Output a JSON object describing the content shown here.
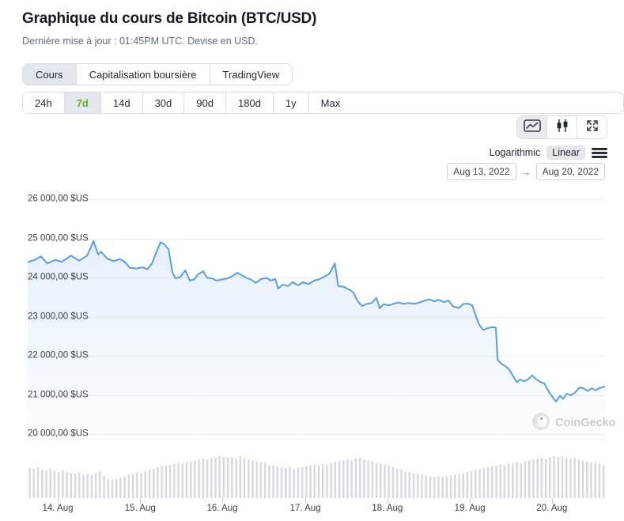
{
  "header": {
    "title": "Graphique du cours de Bitcoin (BTC/USD)",
    "subtitle": "Dernière mise à jour : 01:45PM UTC. Devise en USD.",
    "tabs": [
      {
        "label": "Cours",
        "active": true
      },
      {
        "label": "Capitalisation boursière",
        "active": false
      },
      {
        "label": "TradingView",
        "active": false
      }
    ],
    "ranges": [
      {
        "label": "24h",
        "active": false
      },
      {
        "label": "7d",
        "active": true
      },
      {
        "label": "14d",
        "active": false
      },
      {
        "label": "30d",
        "active": false
      },
      {
        "label": "90d",
        "active": false
      },
      {
        "label": "180d",
        "active": false
      },
      {
        "label": "1y",
        "active": false
      },
      {
        "label": "Max",
        "active": false
      }
    ]
  },
  "controls": {
    "chart_types": [
      "line-chart",
      "candlestick",
      "fullscreen"
    ],
    "chart_type_selected": "line-chart",
    "scale": {
      "options": [
        "Logarithmic",
        "Linear"
      ],
      "selected": "Linear"
    },
    "date_range": {
      "from": "Aug 13, 2022",
      "arrow": "→",
      "to": "Aug 20, 2022"
    }
  },
  "watermark": {
    "label": "CoinGecko"
  },
  "colors": {
    "line": "#5d9cdf",
    "area_top": "rgba(100,160,225,0.16)",
    "area_bottom": "rgba(100,160,225,0.02)",
    "volume_bar": "#d5d8e0",
    "active_green": "#6fad27",
    "grid": "#eceef1"
  },
  "chart_data": {
    "type": "line",
    "title": "Bitcoin price BTC/USD, 7 days (Aug 13 - Aug 20, 2022)",
    "xlabel": "",
    "ylabel": "",
    "currency": "USD",
    "grid": true,
    "legend": false,
    "ylim": [
      19879,
      26141
    ],
    "y_ticks": [
      {
        "value": 26000,
        "label": "26 000,00 $US"
      },
      {
        "value": 25000,
        "label": "25 000,00 $US"
      },
      {
        "value": 24000,
        "label": "24 000,00 $US"
      },
      {
        "value": 23000,
        "label": "23 000,00 $US"
      },
      {
        "value": 22000,
        "label": "22 000,00 $US"
      },
      {
        "value": 21000,
        "label": "21 000,00 $US"
      },
      {
        "value": 20000,
        "label": "20 000,00 $US"
      }
    ],
    "x_ticks": [
      {
        "f": 0.052,
        "label": "14. Aug"
      },
      {
        "f": 0.195,
        "label": "15. Aug"
      },
      {
        "f": 0.337,
        "label": "16. Aug"
      },
      {
        "f": 0.481,
        "label": "17. Aug"
      },
      {
        "f": 0.623,
        "label": "18. Aug"
      },
      {
        "f": 0.766,
        "label": "19. Aug"
      },
      {
        "f": 0.908,
        "label": "20. Aug"
      }
    ],
    "price_points": [
      [
        0.0,
        24390
      ],
      [
        0.012,
        24450
      ],
      [
        0.023,
        24540
      ],
      [
        0.034,
        24360
      ],
      [
        0.048,
        24450
      ],
      [
        0.059,
        24400
      ],
      [
        0.075,
        24560
      ],
      [
        0.089,
        24430
      ],
      [
        0.103,
        24560
      ],
      [
        0.114,
        24930
      ],
      [
        0.122,
        24590
      ],
      [
        0.127,
        24660
      ],
      [
        0.138,
        24480
      ],
      [
        0.149,
        24420
      ],
      [
        0.16,
        24470
      ],
      [
        0.168,
        24400
      ],
      [
        0.177,
        24250
      ],
      [
        0.188,
        24230
      ],
      [
        0.199,
        24260
      ],
      [
        0.207,
        24210
      ],
      [
        0.215,
        24350
      ],
      [
        0.223,
        24650
      ],
      [
        0.23,
        24900
      ],
      [
        0.237,
        24840
      ],
      [
        0.244,
        24720
      ],
      [
        0.251,
        24120
      ],
      [
        0.256,
        23980
      ],
      [
        0.264,
        24010
      ],
      [
        0.273,
        24180
      ],
      [
        0.281,
        23920
      ],
      [
        0.289,
        23960
      ],
      [
        0.295,
        24080
      ],
      [
        0.304,
        24160
      ],
      [
        0.311,
        23990
      ],
      [
        0.319,
        23980
      ],
      [
        0.327,
        23920
      ],
      [
        0.337,
        23950
      ],
      [
        0.347,
        23980
      ],
      [
        0.355,
        24040
      ],
      [
        0.363,
        24120
      ],
      [
        0.371,
        24060
      ],
      [
        0.379,
        23990
      ],
      [
        0.388,
        23940
      ],
      [
        0.395,
        23860
      ],
      [
        0.404,
        23960
      ],
      [
        0.414,
        23990
      ],
      [
        0.421,
        23920
      ],
      [
        0.429,
        23960
      ],
      [
        0.434,
        23720
      ],
      [
        0.442,
        23820
      ],
      [
        0.451,
        23780
      ],
      [
        0.459,
        23880
      ],
      [
        0.468,
        23800
      ],
      [
        0.477,
        23880
      ],
      [
        0.486,
        23830
      ],
      [
        0.496,
        23920
      ],
      [
        0.504,
        23950
      ],
      [
        0.514,
        24020
      ],
      [
        0.523,
        24100
      ],
      [
        0.532,
        24360
      ],
      [
        0.538,
        23780
      ],
      [
        0.548,
        23760
      ],
      [
        0.558,
        23680
      ],
      [
        0.564,
        23620
      ],
      [
        0.571,
        23410
      ],
      [
        0.579,
        23270
      ],
      [
        0.586,
        23320
      ],
      [
        0.596,
        23350
      ],
      [
        0.604,
        23480
      ],
      [
        0.61,
        23210
      ],
      [
        0.616,
        23320
      ],
      [
        0.626,
        23290
      ],
      [
        0.634,
        23330
      ],
      [
        0.642,
        23360
      ],
      [
        0.651,
        23330
      ],
      [
        0.66,
        23350
      ],
      [
        0.67,
        23330
      ],
      [
        0.678,
        23360
      ],
      [
        0.688,
        23410
      ],
      [
        0.696,
        23440
      ],
      [
        0.704,
        23390
      ],
      [
        0.712,
        23430
      ],
      [
        0.721,
        23370
      ],
      [
        0.729,
        23410
      ],
      [
        0.737,
        23260
      ],
      [
        0.747,
        23220
      ],
      [
        0.755,
        23330
      ],
      [
        0.763,
        23330
      ],
      [
        0.77,
        23290
      ],
      [
        0.775,
        23070
      ],
      [
        0.782,
        22790
      ],
      [
        0.789,
        22660
      ],
      [
        0.796,
        22700
      ],
      [
        0.804,
        22730
      ],
      [
        0.811,
        22720
      ],
      [
        0.814,
        21900
      ],
      [
        0.821,
        21790
      ],
      [
        0.827,
        21740
      ],
      [
        0.834,
        21650
      ],
      [
        0.841,
        21480
      ],
      [
        0.847,
        21330
      ],
      [
        0.853,
        21390
      ],
      [
        0.86,
        21350
      ],
      [
        0.867,
        21400
      ],
      [
        0.874,
        21500
      ],
      [
        0.881,
        21400
      ],
      [
        0.888,
        21330
      ],
      [
        0.895,
        21290
      ],
      [
        0.903,
        21070
      ],
      [
        0.91,
        20930
      ],
      [
        0.915,
        20830
      ],
      [
        0.922,
        20980
      ],
      [
        0.927,
        20900
      ],
      [
        0.934,
        21030
      ],
      [
        0.941,
        20990
      ],
      [
        0.948,
        21060
      ],
      [
        0.956,
        21190
      ],
      [
        0.963,
        21170
      ],
      [
        0.97,
        21100
      ],
      [
        0.977,
        21170
      ],
      [
        0.984,
        21120
      ],
      [
        0.99,
        21170
      ],
      [
        1.0,
        21220
      ]
    ],
    "volume_relative": true,
    "volume_bars": [
      0.72,
      0.7,
      0.74,
      0.68,
      0.66,
      0.7,
      0.65,
      0.62,
      0.66,
      0.63,
      0.6,
      0.58,
      0.6,
      0.56,
      0.58,
      0.55,
      0.6,
      0.64,
      0.52,
      0.46,
      0.44,
      0.46,
      0.5,
      0.52,
      0.56,
      0.58,
      0.62,
      0.6,
      0.64,
      0.68,
      0.7,
      0.74,
      0.76,
      0.78,
      0.8,
      0.82,
      0.84,
      0.82,
      0.86,
      0.88,
      0.9,
      0.92,
      0.94,
      0.92,
      0.96,
      0.98,
      1.0,
      0.98,
      0.96,
      0.98,
      0.94,
      1.0,
      0.96,
      0.92,
      0.9,
      0.88,
      0.86,
      0.84,
      0.8,
      0.78,
      0.76,
      0.74,
      0.72,
      0.74,
      0.7,
      0.72,
      0.74,
      0.76,
      0.78,
      0.8,
      0.78,
      0.82,
      0.8,
      0.84,
      0.86,
      0.88,
      0.9,
      0.92,
      0.9,
      0.94,
      0.96,
      0.92,
      0.9,
      0.88,
      0.84,
      0.82,
      0.8,
      0.78,
      0.74,
      0.7,
      0.68,
      0.64,
      0.62,
      0.6,
      0.58,
      0.56,
      0.54,
      0.52,
      0.5,
      0.52,
      0.5,
      0.52,
      0.54,
      0.56,
      0.58,
      0.6,
      0.62,
      0.64,
      0.68,
      0.7,
      0.72,
      0.74,
      0.76,
      0.78,
      0.8,
      0.78,
      0.82,
      0.84,
      0.86,
      0.84,
      0.88,
      0.9,
      0.92,
      0.94,
      0.96,
      0.94,
      0.98,
      1.0,
      0.98,
      1.0,
      0.96,
      0.94,
      0.96,
      0.92,
      0.9,
      0.88,
      0.86,
      0.84,
      0.82,
      0.8
    ]
  }
}
